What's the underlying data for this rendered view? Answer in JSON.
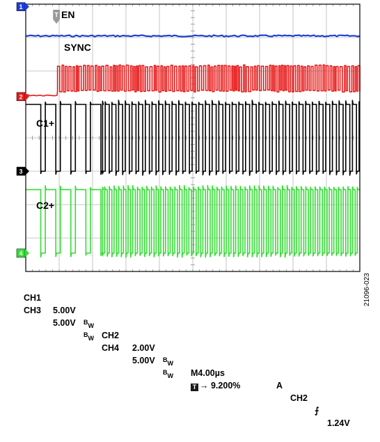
{
  "chart_data": {
    "type": "line",
    "title": "",
    "grid": true,
    "time_axis": {
      "divisions": 10,
      "time_per_division": "4.00µs"
    },
    "voltage_axis": {
      "divisions": 8
    },
    "series": [
      {
        "name": "EN",
        "channel": "CH1",
        "marker": "1",
        "color": "#1f3dd6",
        "scale": "5.00V",
        "level_div": 7.05,
        "state": "high",
        "rise_div": null,
        "pulse_groups": []
      },
      {
        "name": "SYNC",
        "channel": "CH2",
        "marker": "2",
        "color": "#e81818",
        "scale": "2.00V",
        "level_div": 5.4,
        "state": "switching",
        "rise_div": 0.95,
        "period_div": 0.1,
        "duty": 0.5,
        "swing_div": 0.75,
        "pulse_groups": []
      },
      {
        "name": "C1+",
        "channel": "CH3",
        "marker": "3",
        "color": "#000000",
        "scale": "5.00V",
        "level_div": 3.0,
        "state": "switching",
        "rise_div": null,
        "swing_div": 2.0,
        "pulse_groups": [
          {
            "start_div": 0.45,
            "end_div": 2.3,
            "period_div": 0.45,
            "duty": 0.7
          },
          {
            "start_div": 2.3,
            "end_div": 10.0,
            "period_div": 0.2,
            "duty": 0.6
          }
        ]
      },
      {
        "name": "C2+",
        "channel": "CH4",
        "marker": "4",
        "color": "#33dd33",
        "scale": "5.00V",
        "level_div": 0.55,
        "state": "switching",
        "rise_div": null,
        "swing_div": 1.9,
        "pulse_groups": [
          {
            "start_div": 0.45,
            "end_div": 2.3,
            "period_div": 0.45,
            "duty": 0.7
          },
          {
            "start_div": 2.3,
            "end_div": 10.0,
            "period_div": 0.14,
            "duty": 0.55
          }
        ]
      }
    ],
    "trigger_marker": {
      "label": "T",
      "position_div": 0.92
    },
    "trigger_level_marker": "2"
  },
  "labels": {
    "ch1": "EN",
    "ch2": "SYNC",
    "ch3": "C1+",
    "ch4": "C2+"
  },
  "readout": {
    "ch1_name": "CH1",
    "ch1_scale": "5.00V",
    "ch2_name": "CH2",
    "ch2_scale": "2.00V",
    "ch3_name": "CH3",
    "ch3_scale": "5.00V",
    "ch4_name": "CH4",
    "ch4_scale": "5.00V",
    "bw_sup": "B",
    "bw_sub": "W",
    "timebase": "M4.00µs",
    "trigger_mode": "A",
    "trigger_source": "CH2",
    "trigger_slope": "⨍",
    "trigger_level": "1.24V",
    "position_icon": "T",
    "position_arrow": "→",
    "position_value": "9.200%"
  },
  "figure_id": "21096-023"
}
